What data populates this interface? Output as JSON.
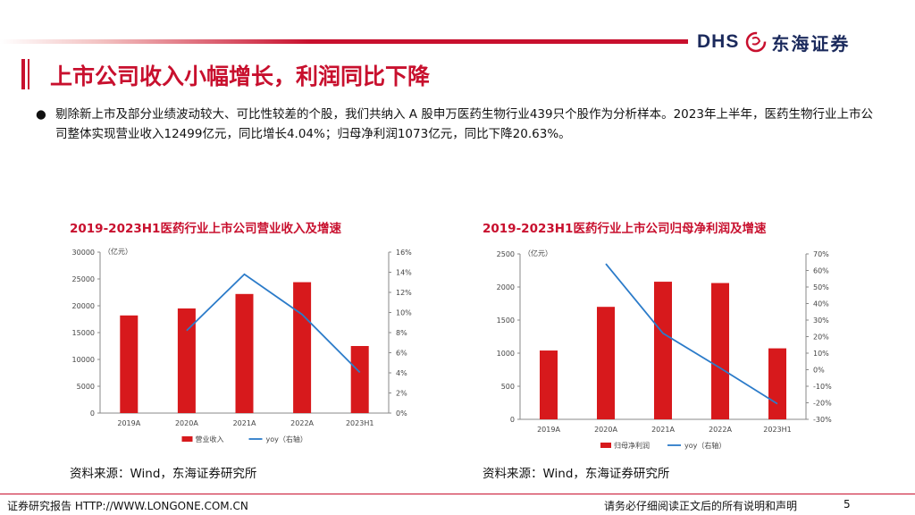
{
  "header": {
    "logo_text": "DHS",
    "logo_cn": "东海证券",
    "brand_color": "#c8102e"
  },
  "title": "上市公司收入小幅增长，利润同比下降",
  "bullet": "剔除新上市及部分业绩波动较大、可比性较差的个股，我们共纳入 A 股申万医药生物行业439只个股作为分析样本。2023年上半年，医药生物行业上市公司整体实现营业收入12499亿元，同比增长4.04%；归母净利润1073亿元，同比下降20.63%。",
  "chart_data": [
    {
      "type": "bar",
      "title": "2019-2023H1医药行业上市公司营业收入及增速",
      "categories": [
        "2019A",
        "2020A",
        "2021A",
        "2022A",
        "2023H1"
      ],
      "series": [
        {
          "name": "营业收入",
          "kind": "bar",
          "axis": "left",
          "color": "#d7191c",
          "values": [
            18200,
            19500,
            22200,
            24400,
            12499
          ]
        },
        {
          "name": "yoy（右轴）",
          "kind": "line",
          "axis": "right",
          "color": "#2b7bc9",
          "values": [
            null,
            8.2,
            13.8,
            9.8,
            4.04
          ]
        }
      ],
      "left_unit": "（亿元）",
      "ylim": [
        0,
        30000
      ],
      "yticks": [
        "0",
        "5000",
        "10000",
        "15000",
        "20000",
        "25000",
        "30000"
      ],
      "y2lim": [
        0,
        16
      ],
      "y2ticks": [
        "0%",
        "2%",
        "4%",
        "6%",
        "8%",
        "10%",
        "12%",
        "14%",
        "16%"
      ],
      "source": "资料来源：Wind，东海证券研究所"
    },
    {
      "type": "bar",
      "title": "2019-2023H1医药行业上市公司归母净利润及增速",
      "categories": [
        "2019A",
        "2020A",
        "2021A",
        "2022A",
        "2023H1"
      ],
      "series": [
        {
          "name": "归母净利润",
          "kind": "bar",
          "axis": "left",
          "color": "#d7191c",
          "values": [
            1040,
            1700,
            2080,
            2060,
            1073
          ]
        },
        {
          "name": "yoy（右轴）",
          "kind": "line",
          "axis": "right",
          "color": "#2b7bc9",
          "values": [
            null,
            64,
            22,
            1,
            -20.63
          ]
        }
      ],
      "left_unit": "（亿元）",
      "ylim": [
        0,
        2500
      ],
      "yticks": [
        "0",
        "500",
        "1000",
        "1500",
        "2000",
        "2500"
      ],
      "y2lim": [
        -30,
        70
      ],
      "y2ticks": [
        "-30%",
        "-20%",
        "-10%",
        "0%",
        "10%",
        "20%",
        "30%",
        "40%",
        "50%",
        "60%",
        "70%"
      ],
      "source": "资料来源：Wind，东海证券研究所"
    }
  ],
  "footer": {
    "left": "证券研究报告 HTTP://WWW.LONGONE.COM.CN",
    "right": "请务必仔细阅读正文后的所有说明和声明",
    "page": "5"
  }
}
